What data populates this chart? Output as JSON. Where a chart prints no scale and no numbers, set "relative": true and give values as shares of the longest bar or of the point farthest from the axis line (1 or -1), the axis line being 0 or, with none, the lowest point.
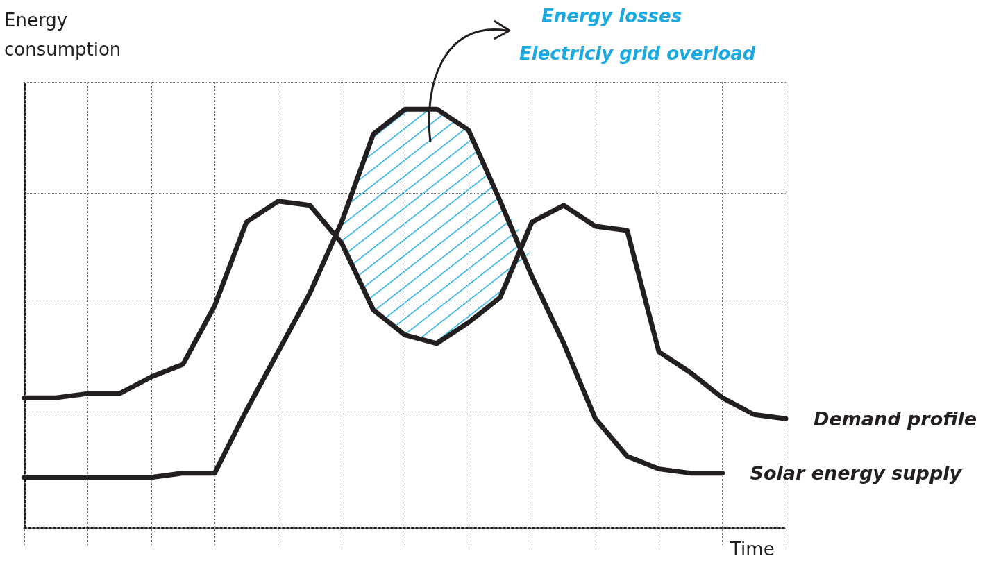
{
  "chart_data": {
    "type": "line",
    "relative": true,
    "xlabel": "Time",
    "ylabel": "Energy consumption",
    "annotations": [
      "Energy losses",
      "Electriciy grid overload"
    ],
    "categories": [
      null,
      null,
      null,
      null,
      null,
      null,
      null,
      null,
      null,
      null,
      null,
      null,
      null,
      null,
      null,
      null,
      null,
      null,
      null,
      null,
      null,
      null,
      null,
      null,
      null
    ],
    "series": [
      {
        "name": "Demand profile",
        "color": "#231f20",
        "values": [
          0.31,
          0.31,
          0.32,
          0.32,
          0.36,
          0.39,
          0.53,
          0.73,
          0.78,
          0.77,
          0.68,
          0.52,
          0.46,
          0.44,
          0.49,
          0.55,
          0.73,
          0.77,
          0.72,
          0.71,
          0.42,
          0.37,
          0.31,
          0.27,
          0.26
        ]
      },
      {
        "name": "Solar energy supply",
        "color": "#231f20",
        "values": [
          0.12,
          0.12,
          0.12,
          0.12,
          0.12,
          0.13,
          0.13,
          0.28,
          0.42,
          0.56,
          0.73,
          0.94,
          1.0,
          1.0,
          0.95,
          0.78,
          0.6,
          0.44,
          0.26,
          0.17,
          0.14,
          0.13,
          0.13,
          null,
          null
        ]
      }
    ],
    "grid": true,
    "legend": false,
    "marker": "none",
    "line_style": "solid"
  }
}
